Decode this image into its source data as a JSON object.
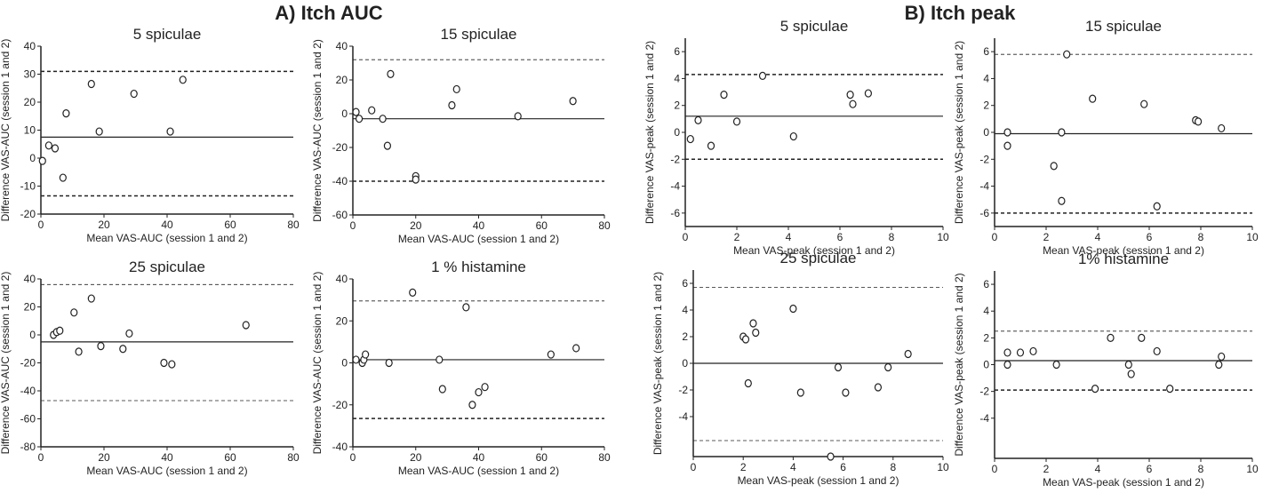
{
  "panels": {
    "a_title": "A) Itch AUC",
    "b_title": "B) Itch peak"
  },
  "chart_data": [
    {
      "type": "scatter",
      "id": "auc-5",
      "title": "5 spiculae",
      "xlabel": "Mean VAS-AUC (session 1 and 2)",
      "ylabel": "Difference VAS-AUC (session 1 and 2)",
      "xlim": [
        0,
        80
      ],
      "ylim": [
        -20,
        40
      ],
      "xticks": [
        0,
        20,
        40,
        60,
        80
      ],
      "yticks": [
        -20,
        -10,
        0,
        10,
        20,
        30,
        40
      ],
      "mean_line": 7.5,
      "upper_loa": 31,
      "lower_loa": -13.5,
      "loa_style": "bold",
      "points": [
        [
          0.5,
          -1
        ],
        [
          2.5,
          4.5
        ],
        [
          4.5,
          3.5
        ],
        [
          7,
          -7
        ],
        [
          8,
          16
        ],
        [
          16,
          26.5
        ],
        [
          18.5,
          9.5
        ],
        [
          29.5,
          23
        ],
        [
          41,
          9.5
        ],
        [
          45,
          28
        ]
      ]
    },
    {
      "type": "scatter",
      "id": "auc-15",
      "title": "15 spiculae",
      "xlabel": "Mean VAS-AUC (session 1 and 2)",
      "ylabel": "Difference VAS-AUC (session 1 and 2)",
      "xlim": [
        0,
        80
      ],
      "ylim": [
        -60,
        40
      ],
      "xticks": [
        0,
        20,
        40,
        60,
        80
      ],
      "yticks": [
        -60,
        -40,
        -20,
        0,
        20,
        40
      ],
      "mean_line": -3,
      "upper_loa": 32,
      "lower_loa": -40,
      "loa_style": "mixed",
      "points": [
        [
          1,
          1
        ],
        [
          2,
          -3
        ],
        [
          6,
          2
        ],
        [
          9.5,
          -3
        ],
        [
          11,
          -19
        ],
        [
          12,
          23.5
        ],
        [
          20,
          -37
        ],
        [
          20,
          -39
        ],
        [
          31.5,
          5
        ],
        [
          33,
          14.5
        ],
        [
          52.5,
          -1.5
        ],
        [
          70,
          7.5
        ]
      ]
    },
    {
      "type": "scatter",
      "id": "auc-25",
      "title": "25 spiculae",
      "xlabel": "Mean VAS-AUC (session 1 and 2)",
      "ylabel": "Difference VAS-AUC (session 1 and 2)",
      "xlim": [
        0,
        80
      ],
      "ylim": [
        -80,
        40
      ],
      "xticks": [
        0,
        20,
        40,
        60,
        80
      ],
      "yticks": [
        -80,
        -60,
        -40,
        -20,
        0,
        20,
        40
      ],
      "mean_line": -5,
      "upper_loa": 36,
      "lower_loa": -47,
      "loa_style": "thin",
      "points": [
        [
          4,
          0
        ],
        [
          5,
          2
        ],
        [
          6,
          3
        ],
        [
          10.5,
          16
        ],
        [
          12,
          -12
        ],
        [
          16,
          26
        ],
        [
          19,
          -8
        ],
        [
          26,
          -10
        ],
        [
          28,
          1
        ],
        [
          39,
          -20
        ],
        [
          41.5,
          -21
        ],
        [
          65,
          7
        ]
      ]
    },
    {
      "type": "scatter",
      "id": "auc-hist",
      "title": "1 % histamine",
      "xlabel": "Mean VAS-AUC (session 1 and 2)",
      "ylabel": "Difference VAS-AUC (session 1 and 2)",
      "xlim": [
        0,
        80
      ],
      "ylim": [
        -40,
        40
      ],
      "xticks": [
        0,
        20,
        40,
        60,
        80
      ],
      "yticks": [
        -40,
        -20,
        0,
        20,
        40
      ],
      "mean_line": 1.5,
      "upper_loa": 29.5,
      "lower_loa": -26.5,
      "loa_style": "mixed",
      "points": [
        [
          1,
          1.5
        ],
        [
          3,
          0
        ],
        [
          3.5,
          1.5
        ],
        [
          4,
          4
        ],
        [
          11.5,
          0
        ],
        [
          19,
          33.5
        ],
        [
          27.5,
          1.5
        ],
        [
          28.5,
          -12.5
        ],
        [
          36,
          26.5
        ],
        [
          38,
          -20
        ],
        [
          40,
          -14
        ],
        [
          42,
          -11.5
        ],
        [
          63,
          4
        ],
        [
          71,
          7
        ]
      ]
    },
    {
      "type": "scatter",
      "id": "peak-5",
      "title": "5 spiculae",
      "xlabel": "Mean VAS-peak (session 1 and 2)",
      "ylabel": "Difference VAS-peak (session 1 and 2)",
      "xlim": [
        0,
        10
      ],
      "ylim": [
        -7,
        7
      ],
      "xticks": [
        0,
        2,
        4,
        6,
        8,
        10
      ],
      "yticks": [
        -6,
        -4,
        -2,
        0,
        2,
        4,
        6
      ],
      "mean_line": 1.2,
      "upper_loa": 4.3,
      "lower_loa": -2,
      "loa_style": "bold",
      "points": [
        [
          0.2,
          -0.5
        ],
        [
          0.5,
          0.9
        ],
        [
          1,
          -1
        ],
        [
          1.5,
          2.8
        ],
        [
          2,
          0.8
        ],
        [
          3,
          4.2
        ],
        [
          4.2,
          -0.3
        ],
        [
          6.4,
          2.8
        ],
        [
          6.5,
          2.1
        ],
        [
          7.1,
          2.9
        ]
      ]
    },
    {
      "type": "scatter",
      "id": "peak-15",
      "title": "15 spiculae",
      "xlabel": "Mean VAS-peak (session 1 and 2)",
      "ylabel": "Difference VAS-peak (session 1 and 2)",
      "xlim": [
        0,
        10
      ],
      "ylim": [
        -7,
        7
      ],
      "xticks": [
        0,
        2,
        4,
        6,
        8,
        10
      ],
      "yticks": [
        -6,
        -4,
        -2,
        0,
        2,
        4,
        6
      ],
      "mean_line": -0.1,
      "upper_loa": 5.8,
      "lower_loa": -6,
      "loa_style": "mixed",
      "points": [
        [
          0.5,
          0
        ],
        [
          0.5,
          -1
        ],
        [
          2.3,
          -2.5
        ],
        [
          2.6,
          0
        ],
        [
          2.6,
          -5.1
        ],
        [
          2.8,
          5.8
        ],
        [
          3.8,
          2.5
        ],
        [
          5.8,
          2.1
        ],
        [
          6.3,
          -5.5
        ],
        [
          7.8,
          0.9
        ],
        [
          7.9,
          0.8
        ],
        [
          8.8,
          0.3
        ]
      ]
    },
    {
      "type": "scatter",
      "id": "peak-25",
      "title": "25 spiculae",
      "xlabel": "Mean VAS-peak (session 1 and 2)",
      "ylabel": "Difference VAS-peak (session 1 and 2)",
      "xlim": [
        0,
        10
      ],
      "ylim": [
        -7,
        7
      ],
      "xticks": [
        0,
        2,
        4,
        6,
        8,
        10
      ],
      "yticks": [
        -4,
        -2,
        0,
        2,
        4,
        6
      ],
      "mean_line": 0,
      "upper_loa": 5.7,
      "lower_loa": -5.8,
      "loa_style": "thin",
      "points": [
        [
          2,
          2
        ],
        [
          2.1,
          1.8
        ],
        [
          2.2,
          -1.5
        ],
        [
          2.4,
          3
        ],
        [
          2.5,
          2.3
        ],
        [
          4,
          4.1
        ],
        [
          4.3,
          -2.2
        ],
        [
          5.5,
          -7
        ],
        [
          5.8,
          -0.3
        ],
        [
          6.1,
          -2.2
        ],
        [
          7.4,
          -1.8
        ],
        [
          7.8,
          -0.3
        ],
        [
          8.6,
          0.7
        ]
      ]
    },
    {
      "type": "scatter",
      "id": "peak-hist",
      "title": "1% histamine",
      "xlabel": "Mean VAS-peak (session 1 and 2)",
      "ylabel": "Difference VAS-peak (session 1 and 2)",
      "xlim": [
        0,
        10
      ],
      "ylim": [
        -7,
        7
      ],
      "xticks": [
        0,
        2,
        4,
        6,
        8,
        10
      ],
      "yticks": [
        -4,
        -2,
        0,
        2,
        4,
        6
      ],
      "mean_line": 0.3,
      "upper_loa": 2.5,
      "lower_loa": -1.9,
      "loa_style": "mixed",
      "points": [
        [
          0.5,
          0.9
        ],
        [
          0.5,
          0
        ],
        [
          1,
          0.9
        ],
        [
          1.5,
          1
        ],
        [
          2.4,
          0
        ],
        [
          3.9,
          -1.8
        ],
        [
          4.5,
          2
        ],
        [
          5.2,
          0
        ],
        [
          5.3,
          -0.7
        ],
        [
          5.7,
          2
        ],
        [
          6.3,
          1
        ],
        [
          6.8,
          -1.8
        ],
        [
          8.7,
          0
        ],
        [
          8.8,
          0.6
        ]
      ]
    }
  ]
}
